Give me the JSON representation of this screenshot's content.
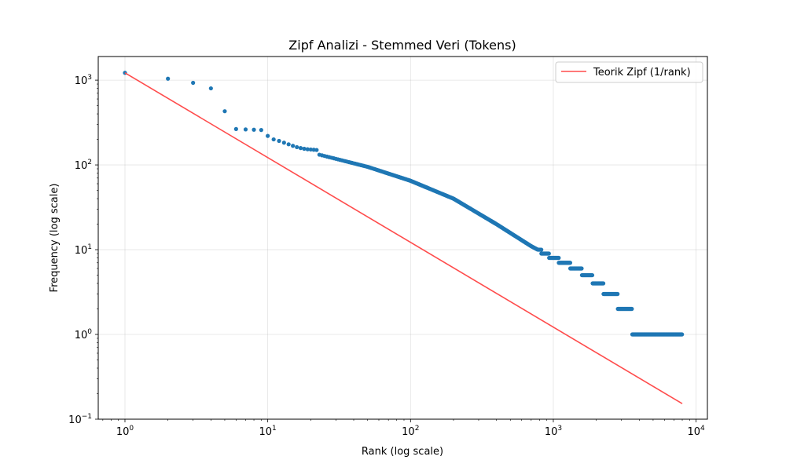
{
  "chart_data": {
    "type": "scatter",
    "title": "Zipf Analizi - Stemmed Veri (Tokens)",
    "xlabel": "Rank (log scale)",
    "ylabel": "Frequency (log scale)",
    "x_scale": "log",
    "y_scale": "log",
    "xlim": [
      0.65,
      12000
    ],
    "ylim": [
      0.1,
      1900
    ],
    "grid": true,
    "legend_position": "top-right",
    "x_ticks": [
      {
        "base": "10",
        "exp": "0"
      },
      {
        "base": "10",
        "exp": "1"
      },
      {
        "base": "10",
        "exp": "2"
      },
      {
        "base": "10",
        "exp": "3"
      },
      {
        "base": "10",
        "exp": "4"
      }
    ],
    "y_ticks": [
      {
        "base": "10",
        "exp": "−1"
      },
      {
        "base": "10",
        "exp": "0"
      },
      {
        "base": "10",
        "exp": "1"
      },
      {
        "base": "10",
        "exp": "2"
      },
      {
        "base": "10",
        "exp": "3"
      }
    ],
    "series": [
      {
        "kind": "scatter",
        "color": "#1f77b4",
        "total_ranks": 8000,
        "top_ranks": [
          1,
          2,
          3,
          4,
          5,
          6,
          7,
          8,
          9,
          10,
          11,
          12,
          13,
          14,
          15,
          16,
          17,
          18,
          19,
          20,
          21,
          22
        ],
        "top_frequencies": [
          1220,
          1040,
          930,
          800,
          430,
          265,
          262,
          260,
          258,
          220,
          200,
          192,
          183,
          175,
          168,
          162,
          158,
          155,
          153,
          152,
          151,
          150
        ],
        "frequency_curve": [
          {
            "rank": 23,
            "frequency": 132
          },
          {
            "rank": 30,
            "frequency": 118
          },
          {
            "rank": 50,
            "frequency": 95
          },
          {
            "rank": 100,
            "frequency": 65
          },
          {
            "rank": 200,
            "frequency": 40
          },
          {
            "rank": 400,
            "frequency": 20
          },
          {
            "rank": 700,
            "frequency": 11
          },
          {
            "rank": 1000,
            "frequency": 8
          },
          {
            "rank": 1200,
            "frequency": 7
          },
          {
            "rank": 1450,
            "frequency": 6
          },
          {
            "rank": 1750,
            "frequency": 5
          },
          {
            "rank": 2050,
            "frequency": 4
          },
          {
            "rank": 2500,
            "frequency": 3
          },
          {
            "rank": 3300,
            "frequency": 2
          },
          {
            "rank": 4000,
            "frequency": 1
          },
          {
            "rank": 8000,
            "frequency": 1
          }
        ]
      },
      {
        "kind": "line",
        "name": "Teorik Zipf (1/rank)",
        "color": "#ff4c4c",
        "x": [
          1,
          8000
        ],
        "y": [
          1220,
          0.1525
        ]
      }
    ]
  }
}
